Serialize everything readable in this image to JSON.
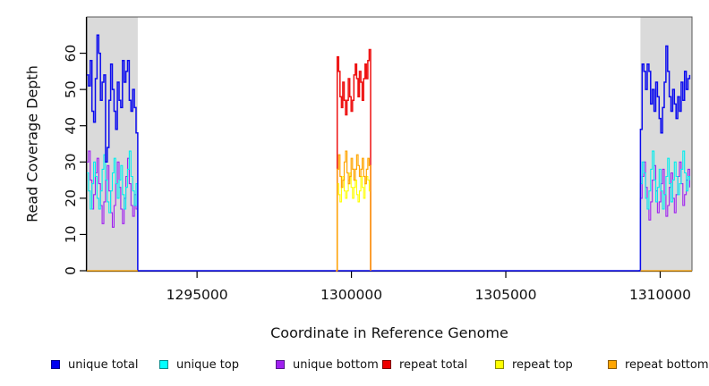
{
  "figure": {
    "x_axis_label": "Coordinate in Reference Genome",
    "y_axis_label": "Read Coverage Depth"
  },
  "chart_data": {
    "type": "line",
    "subtype": "step-coverage",
    "title": "",
    "xlabel": "Coordinate in Reference Genome",
    "ylabel": "Read Coverage Depth",
    "xlim": [
      1291430,
      1311030
    ],
    "ylim": [
      0,
      70
    ],
    "grid": false,
    "x_ticks": [
      1295000,
      1300000,
      1305000,
      1310000
    ],
    "x_tick_labels": [
      "1295000",
      "1300000",
      "1305000",
      "1310000"
    ],
    "y_ticks": [
      0,
      10,
      20,
      30,
      40,
      50,
      60
    ],
    "y_tick_labels": [
      "0",
      "10",
      "20",
      "30",
      "40",
      "50",
      "60"
    ],
    "colors": {
      "shaded_region": "#dadada",
      "axis": "#000000",
      "box": "#555555",
      "tick_text": "#111111"
    },
    "shaded_regions": [
      {
        "x0": 1291430,
        "x1": 1293080
      },
      {
        "x0": 1309360,
        "x1": 1311030
      }
    ],
    "series": [
      {
        "name": "unique bottom",
        "color": "#A020F0",
        "width": 1.1,
        "runs": [
          {
            "start": 1291430,
            "step": 55,
            "values": [
              30,
              33,
              25,
              17,
              21,
              27,
              31,
              24,
              18,
              13,
              19,
              25,
              29,
              22,
              16,
              12,
              18,
              24,
              30,
              23,
              17,
              13,
              20,
              26,
              31,
              24,
              18,
              15,
              21,
              17,
              0
            ]
          },
          {
            "start": 1293080,
            "step": 16280,
            "values": [
              0,
              0
            ]
          },
          {
            "start": 1309305,
            "step": 55,
            "values": [
              0,
              20,
              26,
              30,
              23,
              17,
              14,
              19,
              25,
              29,
              22,
              16,
              19,
              24,
              28,
              21,
              15,
              18,
              23,
              27,
              20,
              16,
              21,
              26,
              30,
              24,
              18,
              21,
              25,
              28,
              23
            ]
          }
        ]
      },
      {
        "name": "unique top",
        "color": "#00EEEE",
        "width": 1.1,
        "runs": [
          {
            "start": 1291430,
            "step": 55,
            "values": [
              27,
              22,
              17,
              24,
              30,
              26,
              20,
              17,
              22,
              28,
              32,
              25,
              19,
              16,
              22,
              27,
              31,
              24,
              20,
              25,
              29,
              21,
              17,
              23,
              28,
              33,
              26,
              22,
              18,
              24,
              0
            ]
          },
          {
            "start": 1309305,
            "step": 55,
            "values": [
              0,
              24,
              30,
              27,
              20,
              17,
              22,
              28,
              33,
              25,
              19,
              23,
              28,
              22,
              17,
              21,
              26,
              31,
              24,
              19,
              25,
              30,
              26,
              21,
              24,
              28,
              33,
              27,
              22,
              26,
              25
            ]
          }
        ]
      },
      {
        "name": "unique total",
        "color": "#0B0BEE",
        "width": 1.5,
        "runs": [
          {
            "start": 1291430,
            "step": 55,
            "values": [
              54,
              51,
              58,
              44,
              41,
              53,
              65,
              60,
              47,
              52,
              54,
              30,
              34,
              47,
              57,
              50,
              44,
              39,
              52,
              47,
              45,
              58,
              52,
              55,
              58,
              47,
              44,
              50,
              45,
              38,
              0
            ]
          },
          {
            "start": 1293080,
            "step": 16280,
            "values": [
              0,
              0
            ]
          },
          {
            "start": 1309305,
            "step": 55,
            "values": [
              0,
              39,
              57,
              55,
              50,
              57,
              55,
              46,
              50,
              44,
              52,
              48,
              42,
              38,
              45,
              52,
              62,
              55,
              48,
              44,
              50,
              46,
              42,
              48,
              44,
              52,
              47,
              55,
              50,
              53,
              54
            ]
          }
        ]
      },
      {
        "name": "repeat total",
        "color": "#EE1111",
        "width": 1.5,
        "runs": [
          {
            "start": 1299495,
            "step": 45,
            "values": [
              0,
              59,
              55,
              48,
              45,
              52,
              47,
              43,
              47,
              53,
              48,
              44,
              47,
              54,
              57,
              53,
              48,
              55,
              52,
              47,
              53,
              57,
              53,
              58,
              61,
              0
            ]
          }
        ]
      },
      {
        "name": "repeat top",
        "color": "#FFFF00",
        "width": 1.1,
        "runs": [
          {
            "start": 1299495,
            "step": 45,
            "values": [
              0,
              24,
              21,
              19,
              23,
              26,
              22,
              20,
              22,
              25,
              27,
              23,
              20,
              23,
              25,
              21,
              19,
              22,
              26,
              23,
              20,
              24,
              26,
              25,
              22,
              0
            ]
          }
        ]
      },
      {
        "name": "repeat bottom",
        "color": "#FFA500",
        "width": 1.2,
        "runs": [
          {
            "start": 1291430,
            "step": 1650,
            "values": [
              0,
              0
            ]
          },
          {
            "start": 1299495,
            "step": 45,
            "values": [
              0,
              28,
              32,
              26,
              23,
              25,
              30,
              33,
              27,
              24,
              26,
              31,
              28,
              25,
              28,
              32,
              29,
              26,
              28,
              31,
              26,
              24,
              28,
              31,
              29,
              0
            ]
          },
          {
            "start": 1309360,
            "step": 1670,
            "values": [
              0,
              0
            ]
          }
        ]
      }
    ],
    "legend": {
      "position": "bottom",
      "items": [
        {
          "label": "unique total",
          "color": "#0000EE",
          "border": "#00008B"
        },
        {
          "label": "unique top",
          "color": "#00FFFF",
          "border": "#008B8B"
        },
        {
          "label": "unique bottom",
          "color": "#A020F0",
          "border": "#551A8B"
        },
        {
          "label": "repeat total",
          "color": "#EE0000",
          "border": "#7B0000"
        },
        {
          "label": "repeat top",
          "color": "#FFFF00",
          "border": "#8B8B00"
        },
        {
          "label": "repeat bottom",
          "color": "#FFA500",
          "border": "#8B5A00"
        }
      ]
    }
  }
}
